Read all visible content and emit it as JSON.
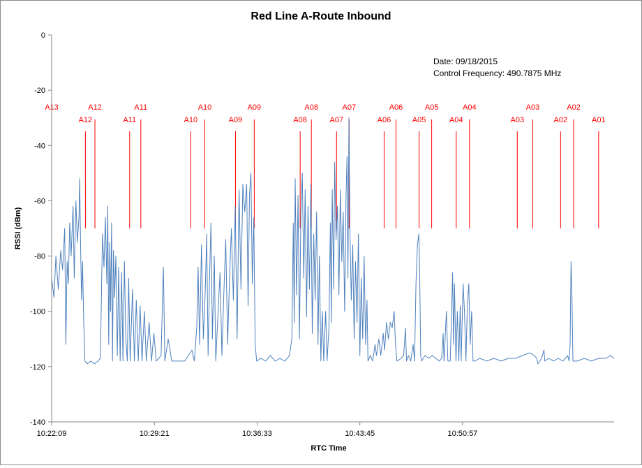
{
  "chart_data": {
    "type": "line",
    "title": "Red Line A-Route Inbound",
    "xlabel": "RTC Time",
    "ylabel": "RSSI (dBm)",
    "ylim": [
      -140,
      0
    ],
    "yticks": [
      0,
      -20,
      -40,
      -60,
      -80,
      -100,
      -120,
      -140
    ],
    "xrange_seconds": [
      0,
      2365
    ],
    "xticks": [
      {
        "label": "10:22:09",
        "t": 0
      },
      {
        "label": "10:29:21",
        "t": 432
      },
      {
        "label": "10:36:33",
        "t": 864
      },
      {
        "label": "10:43:45",
        "t": 1296
      },
      {
        "label": "10:50:57",
        "t": 1728
      }
    ],
    "grid": false,
    "annotations": {
      "date": "Date: 09/18/2015",
      "frequency": "Control Frequency: 490.7875 MHz"
    },
    "station_markers": [
      {
        "label": "A13",
        "t": 0,
        "level": "upper"
      },
      {
        "label": "A12",
        "t": 142,
        "level": "lower"
      },
      {
        "label": "A12",
        "t": 182,
        "level": "upper"
      },
      {
        "label": "A11",
        "t": 328,
        "level": "lower"
      },
      {
        "label": "A11",
        "t": 375,
        "level": "upper"
      },
      {
        "label": "A10",
        "t": 585,
        "level": "lower"
      },
      {
        "label": "A10",
        "t": 644,
        "level": "upper"
      },
      {
        "label": "A09",
        "t": 773,
        "level": "lower"
      },
      {
        "label": "A09",
        "t": 852,
        "level": "upper"
      },
      {
        "label": "A08",
        "t": 1045,
        "level": "lower"
      },
      {
        "label": "A08",
        "t": 1092,
        "level": "upper"
      },
      {
        "label": "A07",
        "t": 1198,
        "level": "lower"
      },
      {
        "label": "A07",
        "t": 1251,
        "level": "upper"
      },
      {
        "label": "A06",
        "t": 1398,
        "level": "lower"
      },
      {
        "label": "A06",
        "t": 1448,
        "level": "upper"
      },
      {
        "label": "A05",
        "t": 1545,
        "level": "lower"
      },
      {
        "label": "A05",
        "t": 1598,
        "level": "upper"
      },
      {
        "label": "A04",
        "t": 1701,
        "level": "lower"
      },
      {
        "label": "A04",
        "t": 1757,
        "level": "upper"
      },
      {
        "label": "A03",
        "t": 1958,
        "level": "lower"
      },
      {
        "label": "A03",
        "t": 2023,
        "level": "upper"
      },
      {
        "label": "A02",
        "t": 2140,
        "level": "lower"
      },
      {
        "label": "A02",
        "t": 2195,
        "level": "upper"
      },
      {
        "label": "A01",
        "t": 2300,
        "level": "lower"
      }
    ],
    "series": [
      {
        "color": "#4f81bd",
        "points": [
          [
            0,
            -88
          ],
          [
            10,
            -95
          ],
          [
            18,
            -80
          ],
          [
            28,
            -92
          ],
          [
            38,
            -78
          ],
          [
            46,
            -85
          ],
          [
            55,
            -70
          ],
          [
            60,
            -112
          ],
          [
            65,
            -82
          ],
          [
            70,
            -90
          ],
          [
            76,
            -68
          ],
          [
            82,
            -80
          ],
          [
            90,
            -62
          ],
          [
            95,
            -88
          ],
          [
            102,
            -60
          ],
          [
            108,
            -75
          ],
          [
            115,
            -66
          ],
          [
            118,
            -52
          ],
          [
            122,
            -78
          ],
          [
            126,
            -96
          ],
          [
            130,
            -82
          ],
          [
            135,
            -104
          ],
          [
            140,
            -118
          ],
          [
            150,
            -119
          ],
          [
            165,
            -118
          ],
          [
            180,
            -119
          ],
          [
            195,
            -118
          ],
          [
            205,
            -117
          ],
          [
            210,
            -90
          ],
          [
            214,
            -72
          ],
          [
            220,
            -84
          ],
          [
            226,
            -66
          ],
          [
            232,
            -90
          ],
          [
            236,
            -62
          ],
          [
            240,
            -112
          ],
          [
            244,
            -75
          ],
          [
            248,
            -100
          ],
          [
            252,
            -68
          ],
          [
            256,
            -118
          ],
          [
            260,
            -78
          ],
          [
            265,
            -95
          ],
          [
            270,
            -80
          ],
          [
            276,
            -116
          ],
          [
            282,
            -84
          ],
          [
            288,
            -118
          ],
          [
            294,
            -86
          ],
          [
            300,
            -118
          ],
          [
            306,
            -82
          ],
          [
            312,
            -110
          ],
          [
            318,
            -118
          ],
          [
            324,
            -88
          ],
          [
            330,
            -118
          ],
          [
            340,
            -92
          ],
          [
            348,
            -118
          ],
          [
            356,
            -96
          ],
          [
            364,
            -118
          ],
          [
            372,
            -98
          ],
          [
            380,
            -118
          ],
          [
            390,
            -100
          ],
          [
            398,
            -118
          ],
          [
            410,
            -104
          ],
          [
            420,
            -118
          ],
          [
            430,
            -108
          ],
          [
            440,
            -118
          ],
          [
            460,
            -116
          ],
          [
            470,
            -84
          ],
          [
            476,
            -118
          ],
          [
            490,
            -110
          ],
          [
            505,
            -118
          ],
          [
            530,
            -118
          ],
          [
            560,
            -118
          ],
          [
            590,
            -114
          ],
          [
            600,
            -118
          ],
          [
            610,
            -106
          ],
          [
            616,
            -84
          ],
          [
            622,
            -112
          ],
          [
            630,
            -76
          ],
          [
            638,
            -110
          ],
          [
            646,
            -92
          ],
          [
            652,
            -72
          ],
          [
            658,
            -116
          ],
          [
            664,
            -88
          ],
          [
            670,
            -68
          ],
          [
            676,
            -110
          ],
          [
            684,
            -80
          ],
          [
            690,
            -118
          ],
          [
            700,
            -100
          ],
          [
            708,
            -86
          ],
          [
            716,
            -116
          ],
          [
            724,
            -94
          ],
          [
            732,
            -74
          ],
          [
            740,
            -112
          ],
          [
            748,
            -88
          ],
          [
            756,
            -70
          ],
          [
            764,
            -96
          ],
          [
            772,
            -62
          ],
          [
            780,
            -110
          ],
          [
            788,
            -56
          ],
          [
            796,
            -92
          ],
          [
            804,
            -54
          ],
          [
            812,
            -64
          ],
          [
            820,
            -54
          ],
          [
            826,
            -98
          ],
          [
            832,
            -58
          ],
          [
            838,
            -50
          ],
          [
            844,
            -90
          ],
          [
            850,
            -66
          ],
          [
            856,
            -112
          ],
          [
            862,
            -118
          ],
          [
            880,
            -117
          ],
          [
            900,
            -118
          ],
          [
            920,
            -116
          ],
          [
            940,
            -118
          ],
          [
            960,
            -117
          ],
          [
            980,
            -118
          ],
          [
            1000,
            -116
          ],
          [
            1010,
            -110
          ],
          [
            1016,
            -68
          ],
          [
            1020,
            -104
          ],
          [
            1024,
            -52
          ],
          [
            1030,
            -94
          ],
          [
            1036,
            -58
          ],
          [
            1042,
            -110
          ],
          [
            1048,
            -64
          ],
          [
            1054,
            -50
          ],
          [
            1060,
            -88
          ],
          [
            1066,
            -56
          ],
          [
            1072,
            -102
          ],
          [
            1078,
            -62
          ],
          [
            1084,
            -92
          ],
          [
            1090,
            -54
          ],
          [
            1096,
            -108
          ],
          [
            1102,
            -72
          ],
          [
            1108,
            -96
          ],
          [
            1114,
            -64
          ],
          [
            1120,
            -112
          ],
          [
            1126,
            -80
          ],
          [
            1132,
            -118
          ],
          [
            1138,
            -100
          ],
          [
            1144,
            -118
          ],
          [
            1152,
            -100
          ],
          [
            1158,
            -118
          ],
          [
            1166,
            -106
          ],
          [
            1172,
            -68
          ],
          [
            1176,
            -104
          ],
          [
            1180,
            -56
          ],
          [
            1186,
            -92
          ],
          [
            1190,
            -46
          ],
          [
            1196,
            -74
          ],
          [
            1202,
            -62
          ],
          [
            1208,
            -94
          ],
          [
            1214,
            -56
          ],
          [
            1220,
            -82
          ],
          [
            1226,
            -64
          ],
          [
            1232,
            -100
          ],
          [
            1238,
            -58
          ],
          [
            1242,
            -44
          ],
          [
            1246,
            -88
          ],
          [
            1250,
            -30
          ],
          [
            1254,
            -70
          ],
          [
            1260,
            -96
          ],
          [
            1266,
            -76
          ],
          [
            1272,
            -110
          ],
          [
            1278,
            -82
          ],
          [
            1284,
            -104
          ],
          [
            1290,
            -72
          ],
          [
            1296,
            -116
          ],
          [
            1302,
            -88
          ],
          [
            1308,
            -110
          ],
          [
            1314,
            -80
          ],
          [
            1320,
            -112
          ],
          [
            1326,
            -96
          ],
          [
            1330,
            -118
          ],
          [
            1340,
            -116
          ],
          [
            1350,
            -118
          ],
          [
            1360,
            -112
          ],
          [
            1366,
            -116
          ],
          [
            1376,
            -110
          ],
          [
            1384,
            -116
          ],
          [
            1394,
            -108
          ],
          [
            1400,
            -114
          ],
          [
            1408,
            -104
          ],
          [
            1416,
            -110
          ],
          [
            1424,
            -104
          ],
          [
            1432,
            -106
          ],
          [
            1440,
            -100
          ],
          [
            1446,
            -112
          ],
          [
            1452,
            -118
          ],
          [
            1470,
            -117
          ],
          [
            1480,
            -116
          ],
          [
            1488,
            -106
          ],
          [
            1492,
            -118
          ],
          [
            1500,
            -116
          ],
          [
            1510,
            -118
          ],
          [
            1520,
            -112
          ],
          [
            1526,
            -118
          ],
          [
            1532,
            -90
          ],
          [
            1538,
            -76
          ],
          [
            1544,
            -72
          ],
          [
            1548,
            -90
          ],
          [
            1552,
            -116
          ],
          [
            1556,
            -118
          ],
          [
            1570,
            -116
          ],
          [
            1585,
            -117
          ],
          [
            1600,
            -116
          ],
          [
            1615,
            -117
          ],
          [
            1630,
            -118
          ],
          [
            1640,
            -117
          ],
          [
            1646,
            -108
          ],
          [
            1650,
            -118
          ],
          [
            1660,
            -100
          ],
          [
            1666,
            -118
          ],
          [
            1676,
            -118
          ],
          [
            1682,
            -100
          ],
          [
            1686,
            -86
          ],
          [
            1690,
            -112
          ],
          [
            1694,
            -90
          ],
          [
            1700,
            -118
          ],
          [
            1706,
            -100
          ],
          [
            1712,
            -118
          ],
          [
            1718,
            -98
          ],
          [
            1722,
            -118
          ],
          [
            1730,
            -90
          ],
          [
            1736,
            -100
          ],
          [
            1742,
            -118
          ],
          [
            1748,
            -98
          ],
          [
            1754,
            -90
          ],
          [
            1760,
            -112
          ],
          [
            1766,
            -100
          ],
          [
            1772,
            -118
          ],
          [
            1780,
            -118
          ],
          [
            1800,
            -117
          ],
          [
            1830,
            -118
          ],
          [
            1860,
            -117
          ],
          [
            1890,
            -118
          ],
          [
            1920,
            -117
          ],
          [
            1950,
            -117
          ],
          [
            1980,
            -116
          ],
          [
            2010,
            -115
          ],
          [
            2030,
            -116
          ],
          [
            2040,
            -117
          ],
          [
            2045,
            -119
          ],
          [
            2060,
            -117
          ],
          [
            2070,
            -114
          ],
          [
            2074,
            -118
          ],
          [
            2090,
            -117
          ],
          [
            2110,
            -118
          ],
          [
            2130,
            -117
          ],
          [
            2150,
            -118
          ],
          [
            2160,
            -117
          ],
          [
            2170,
            -116
          ],
          [
            2176,
            -118
          ],
          [
            2180,
            -112
          ],
          [
            2184,
            -82
          ],
          [
            2188,
            -95
          ],
          [
            2192,
            -118
          ],
          [
            2210,
            -118
          ],
          [
            2240,
            -117
          ],
          [
            2270,
            -118
          ],
          [
            2300,
            -117
          ],
          [
            2330,
            -117
          ],
          [
            2350,
            -116
          ],
          [
            2365,
            -117
          ]
        ]
      }
    ]
  }
}
